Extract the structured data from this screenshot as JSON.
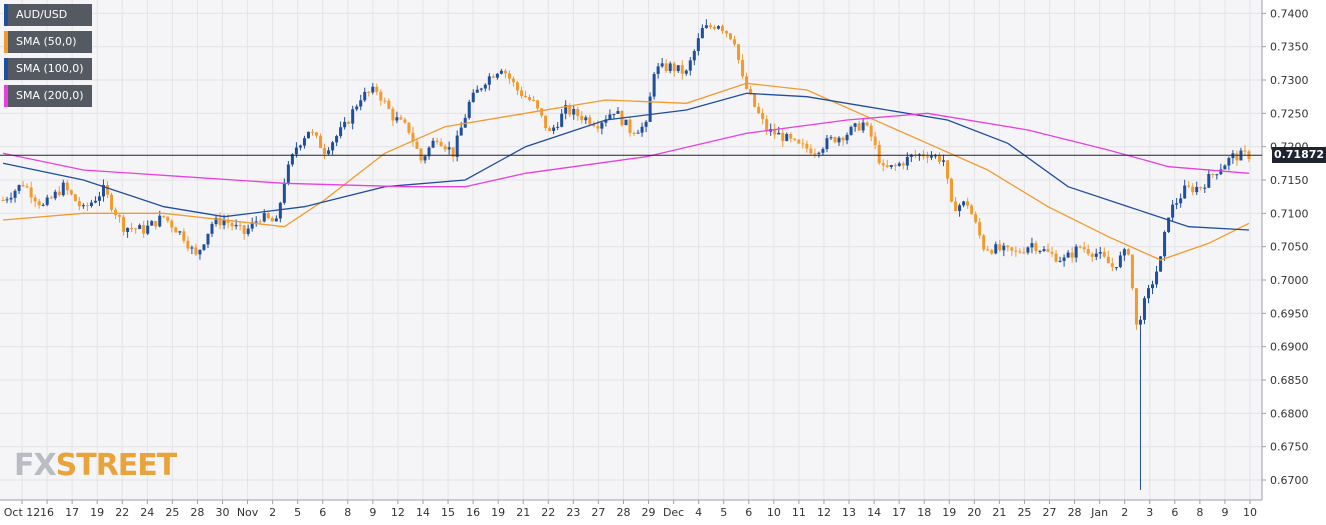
{
  "legend": [
    {
      "label": "AUD/USD",
      "color": "#1f4e9c"
    },
    {
      "label": "SMA (50,0)",
      "color": "#f29a2e"
    },
    {
      "label": "SMA (100,0)",
      "color": "#1f4e9c"
    },
    {
      "label": "SMA (200,0)",
      "color": "#e83fe0"
    }
  ],
  "watermark": {
    "part1": "FX",
    "part2": "STREET"
  },
  "current_price_label": "0.71872",
  "colors": {
    "up": "#1f4e9c",
    "down": "#f29a2e",
    "sma50": "#f29a2e",
    "sma100": "#1f4e9c",
    "sma200": "#e83fe0",
    "plot_bg": "#f5f5f7",
    "grid": "#e4e4e8"
  },
  "chart_data": {
    "type": "candlestick",
    "title": "",
    "xlabel": "",
    "ylabel": "",
    "ylim": [
      0.667,
      0.742
    ],
    "grid": true,
    "legend_position": "top-left",
    "y_ticks": [
      "0.7400",
      "0.7350",
      "0.7300",
      "0.7250",
      "0.7200",
      "0.7150",
      "0.7100",
      "0.7050",
      "0.7000",
      "0.6950",
      "0.6900",
      "0.6850",
      "0.6800",
      "0.6750",
      "0.6700"
    ],
    "x_tick_labels": [
      "Oct 12",
      "16",
      "17",
      "19",
      "22",
      "24",
      "25",
      "28",
      "30",
      "Nov",
      "2",
      "5",
      "6",
      "8",
      "9",
      "12",
      "14",
      "15",
      "16",
      "19",
      "21",
      "22",
      "23",
      "27",
      "28",
      "29",
      "Dec",
      "4",
      "5",
      "6",
      "10",
      "11",
      "12",
      "13",
      "14",
      "17",
      "18",
      "19",
      "20",
      "21",
      "25",
      "27",
      "28",
      "Jan",
      "2",
      "3",
      "6",
      "8",
      "9",
      "10"
    ],
    "current_price": 0.71872,
    "close_path": [
      {
        "i": 0,
        "v": 0.712
      },
      {
        "i": 5,
        "v": 0.7145
      },
      {
        "i": 10,
        "v": 0.711
      },
      {
        "i": 15,
        "v": 0.714
      },
      {
        "i": 20,
        "v": 0.7105
      },
      {
        "i": 25,
        "v": 0.7135
      },
      {
        "i": 30,
        "v": 0.708
      },
      {
        "i": 35,
        "v": 0.7075
      },
      {
        "i": 40,
        "v": 0.7095
      },
      {
        "i": 45,
        "v": 0.7065
      },
      {
        "i": 48,
        "v": 0.7035
      },
      {
        "i": 52,
        "v": 0.7085
      },
      {
        "i": 55,
        "v": 0.709
      },
      {
        "i": 60,
        "v": 0.707
      },
      {
        "i": 64,
        "v": 0.7095
      },
      {
        "i": 68,
        "v": 0.7085
      },
      {
        "i": 70,
        "v": 0.715
      },
      {
        "i": 73,
        "v": 0.72
      },
      {
        "i": 76,
        "v": 0.7225
      },
      {
        "i": 80,
        "v": 0.7195
      },
      {
        "i": 85,
        "v": 0.723
      },
      {
        "i": 89,
        "v": 0.7275
      },
      {
        "i": 93,
        "v": 0.7285
      },
      {
        "i": 97,
        "v": 0.7245
      },
      {
        "i": 101,
        "v": 0.7225
      },
      {
        "i": 104,
        "v": 0.718
      },
      {
        "i": 108,
        "v": 0.7215
      },
      {
        "i": 112,
        "v": 0.719
      },
      {
        "i": 116,
        "v": 0.7265
      },
      {
        "i": 120,
        "v": 0.73
      },
      {
        "i": 124,
        "v": 0.732
      },
      {
        "i": 128,
        "v": 0.7285
      },
      {
        "i": 132,
        "v": 0.7265
      },
      {
        "i": 136,
        "v": 0.722
      },
      {
        "i": 140,
        "v": 0.7255
      },
      {
        "i": 144,
        "v": 0.7245
      },
      {
        "i": 148,
        "v": 0.7235
      },
      {
        "i": 152,
        "v": 0.7255
      },
      {
        "i": 156,
        "v": 0.7225
      },
      {
        "i": 160,
        "v": 0.723
      },
      {
        "i": 162,
        "v": 0.7315
      },
      {
        "i": 166,
        "v": 0.732
      },
      {
        "i": 170,
        "v": 0.731
      },
      {
        "i": 174,
        "v": 0.7375
      },
      {
        "i": 178,
        "v": 0.7385
      },
      {
        "i": 182,
        "v": 0.736
      },
      {
        "i": 184,
        "v": 0.73
      },
      {
        "i": 187,
        "v": 0.726
      },
      {
        "i": 190,
        "v": 0.7225
      },
      {
        "i": 194,
        "v": 0.7215
      },
      {
        "i": 198,
        "v": 0.72
      },
      {
        "i": 202,
        "v": 0.7195
      },
      {
        "i": 206,
        "v": 0.721
      },
      {
        "i": 210,
        "v": 0.722
      },
      {
        "i": 214,
        "v": 0.7235
      },
      {
        "i": 216,
        "v": 0.7215
      },
      {
        "i": 219,
        "v": 0.7165
      },
      {
        "i": 222,
        "v": 0.717
      },
      {
        "i": 226,
        "v": 0.7185
      },
      {
        "i": 230,
        "v": 0.719
      },
      {
        "i": 234,
        "v": 0.718
      },
      {
        "i": 236,
        "v": 0.711
      },
      {
        "i": 240,
        "v": 0.7115
      },
      {
        "i": 244,
        "v": 0.705
      },
      {
        "i": 248,
        "v": 0.7045
      },
      {
        "i": 252,
        "v": 0.704
      },
      {
        "i": 256,
        "v": 0.7055
      },
      {
        "i": 260,
        "v": 0.704
      },
      {
        "i": 264,
        "v": 0.703
      },
      {
        "i": 268,
        "v": 0.705
      },
      {
        "i": 272,
        "v": 0.704
      },
      {
        "i": 276,
        "v": 0.702
      },
      {
        "i": 280,
        "v": 0.7045
      },
      {
        "i": 282,
        "v": 0.693
      },
      {
        "i": 284,
        "v": 0.6965
      },
      {
        "i": 288,
        "v": 0.703
      },
      {
        "i": 290,
        "v": 0.71
      },
      {
        "i": 294,
        "v": 0.7135
      },
      {
        "i": 298,
        "v": 0.714
      },
      {
        "i": 302,
        "v": 0.7165
      },
      {
        "i": 306,
        "v": 0.7185
      },
      {
        "i": 309,
        "v": 0.71872
      }
    ],
    "spike": {
      "i": 283,
      "low": 0.6685
    },
    "series": [
      {
        "name": "SMA (50,0)",
        "points": [
          {
            "i": 0,
            "v": 0.709
          },
          {
            "i": 20,
            "v": 0.71
          },
          {
            "i": 40,
            "v": 0.71
          },
          {
            "i": 55,
            "v": 0.709
          },
          {
            "i": 70,
            "v": 0.708
          },
          {
            "i": 80,
            "v": 0.712
          },
          {
            "i": 95,
            "v": 0.719
          },
          {
            "i": 110,
            "v": 0.723
          },
          {
            "i": 130,
            "v": 0.725
          },
          {
            "i": 150,
            "v": 0.727
          },
          {
            "i": 170,
            "v": 0.7265
          },
          {
            "i": 185,
            "v": 0.7295
          },
          {
            "i": 200,
            "v": 0.7285
          },
          {
            "i": 215,
            "v": 0.7245
          },
          {
            "i": 230,
            "v": 0.7205
          },
          {
            "i": 245,
            "v": 0.7165
          },
          {
            "i": 260,
            "v": 0.711
          },
          {
            "i": 275,
            "v": 0.7065
          },
          {
            "i": 288,
            "v": 0.703
          },
          {
            "i": 300,
            "v": 0.7055
          },
          {
            "i": 310,
            "v": 0.7085
          }
        ]
      },
      {
        "name": "SMA (100,0)",
        "points": [
          {
            "i": 0,
            "v": 0.7175
          },
          {
            "i": 20,
            "v": 0.715
          },
          {
            "i": 40,
            "v": 0.711
          },
          {
            "i": 55,
            "v": 0.7095
          },
          {
            "i": 75,
            "v": 0.711
          },
          {
            "i": 95,
            "v": 0.714
          },
          {
            "i": 115,
            "v": 0.715
          },
          {
            "i": 130,
            "v": 0.72
          },
          {
            "i": 150,
            "v": 0.724
          },
          {
            "i": 170,
            "v": 0.7255
          },
          {
            "i": 185,
            "v": 0.728
          },
          {
            "i": 200,
            "v": 0.7275
          },
          {
            "i": 215,
            "v": 0.726
          },
          {
            "i": 235,
            "v": 0.724
          },
          {
            "i": 250,
            "v": 0.7205
          },
          {
            "i": 265,
            "v": 0.714
          },
          {
            "i": 280,
            "v": 0.711
          },
          {
            "i": 295,
            "v": 0.708
          },
          {
            "i": 310,
            "v": 0.7075
          }
        ]
      },
      {
        "name": "SMA (200,0)",
        "points": [
          {
            "i": 0,
            "v": 0.719
          },
          {
            "i": 20,
            "v": 0.7165
          },
          {
            "i": 45,
            "v": 0.7155
          },
          {
            "i": 70,
            "v": 0.7145
          },
          {
            "i": 100,
            "v": 0.714
          },
          {
            "i": 115,
            "v": 0.714
          },
          {
            "i": 130,
            "v": 0.716
          },
          {
            "i": 160,
            "v": 0.7185
          },
          {
            "i": 185,
            "v": 0.722
          },
          {
            "i": 210,
            "v": 0.724
          },
          {
            "i": 230,
            "v": 0.725
          },
          {
            "i": 255,
            "v": 0.7225
          },
          {
            "i": 275,
            "v": 0.7195
          },
          {
            "i": 290,
            "v": 0.717
          },
          {
            "i": 310,
            "v": 0.716
          }
        ]
      }
    ]
  }
}
